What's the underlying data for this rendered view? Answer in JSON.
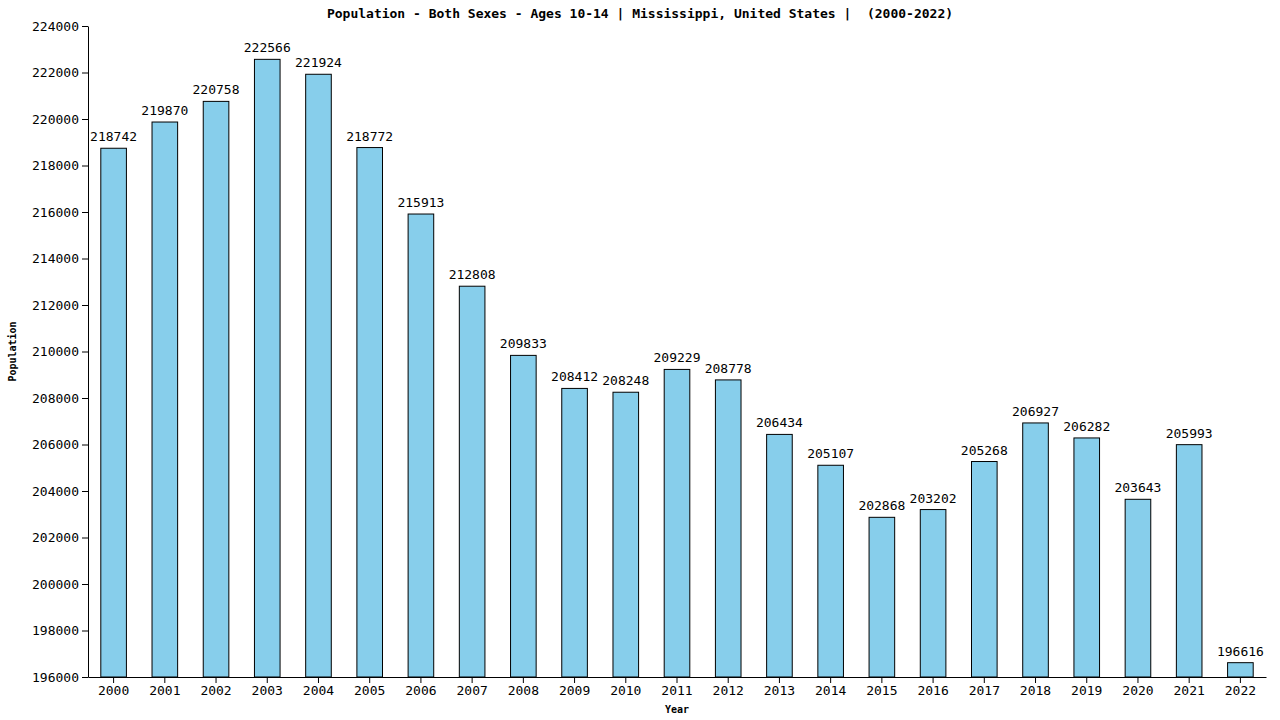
{
  "chart_data": {
    "type": "bar",
    "title": "Population - Both Sexes - Ages 10-14 | Mississippi, United States |  (2000-2022)",
    "x_label": "Year",
    "y_label": "Population",
    "categories": [
      "2000",
      "2001",
      "2002",
      "2003",
      "2004",
      "2005",
      "2006",
      "2007",
      "2008",
      "2009",
      "2010",
      "2011",
      "2012",
      "2013",
      "2014",
      "2015",
      "2016",
      "2017",
      "2018",
      "2019",
      "2020",
      "2021",
      "2022"
    ],
    "values": [
      218742,
      219870,
      220758,
      222566,
      221924,
      218772,
      215913,
      212808,
      209833,
      208412,
      208248,
      209229,
      208778,
      206434,
      205107,
      202868,
      203202,
      205268,
      206927,
      206282,
      203643,
      205993,
      196616
    ],
    "color": "#87ceeb",
    "ylim": [
      196000,
      224000
    ],
    "yticks": [
      196000,
      198000,
      200000,
      202000,
      204000,
      206000,
      208000,
      210000,
      212000,
      214000,
      216000,
      218000,
      220000,
      222000,
      224000
    ],
    "grid": false,
    "data_labels": true
  }
}
